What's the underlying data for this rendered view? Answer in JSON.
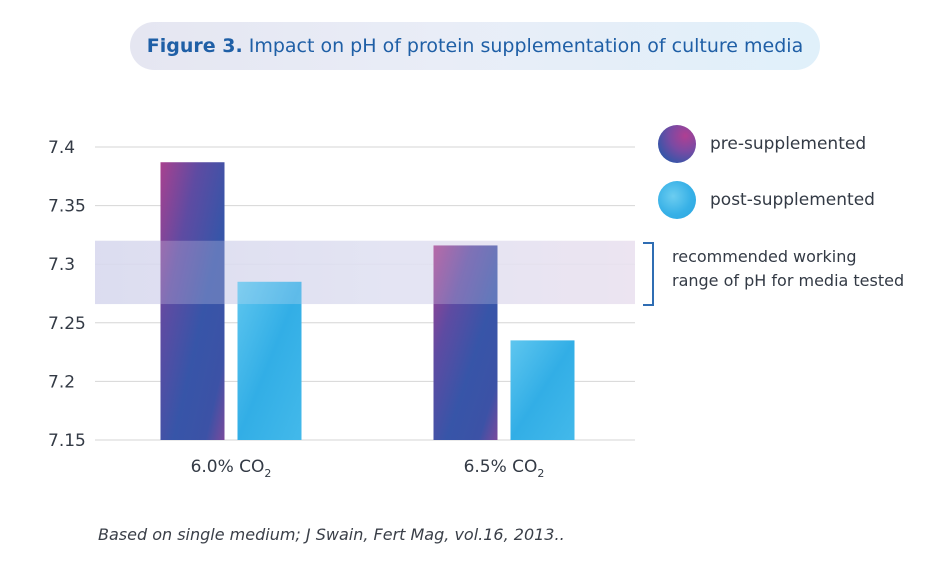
{
  "title": {
    "prefix": "Figure 3.",
    "text": "Impact on pH of protein supplementation of culture media"
  },
  "legend": {
    "pre": "pre-supplemented",
    "post": "post-supplemented"
  },
  "range_note": {
    "line1": "recommended working",
    "line2": "range of pH for media tested"
  },
  "footnote": "Based on single medium; J Swain, Fert Mag, vol.16, 2013..",
  "chart_data": {
    "type": "bar",
    "categories": [
      "6.0% CO2",
      "6.5% CO2"
    ],
    "category_labels": [
      {
        "main": "6.0% CO",
        "sub": "2"
      },
      {
        "main": "6.5% CO",
        "sub": "2"
      }
    ],
    "series": [
      {
        "name": "pre-supplemented",
        "values": [
          7.387,
          7.316
        ],
        "color": "#3a55a8"
      },
      {
        "name": "post-supplemented",
        "values": [
          7.285,
          7.235
        ],
        "color": "#38b1e7"
      }
    ],
    "ylim": [
      7.15,
      7.4
    ],
    "yticks": [
      7.4,
      7.35,
      7.3,
      7.25,
      7.2,
      7.15
    ],
    "ytick_labels": [
      "7.4",
      "7.35",
      "7.3",
      "7.25",
      "7.2",
      "7.15"
    ],
    "recommended_range": [
      7.266,
      7.32
    ],
    "grid": true,
    "legend_position": "right"
  },
  "colors": {
    "title_text": "#1f5fa6",
    "bracket": "#2f6db3",
    "band": "#d8d9ee",
    "grid": "#d6d6d6"
  }
}
